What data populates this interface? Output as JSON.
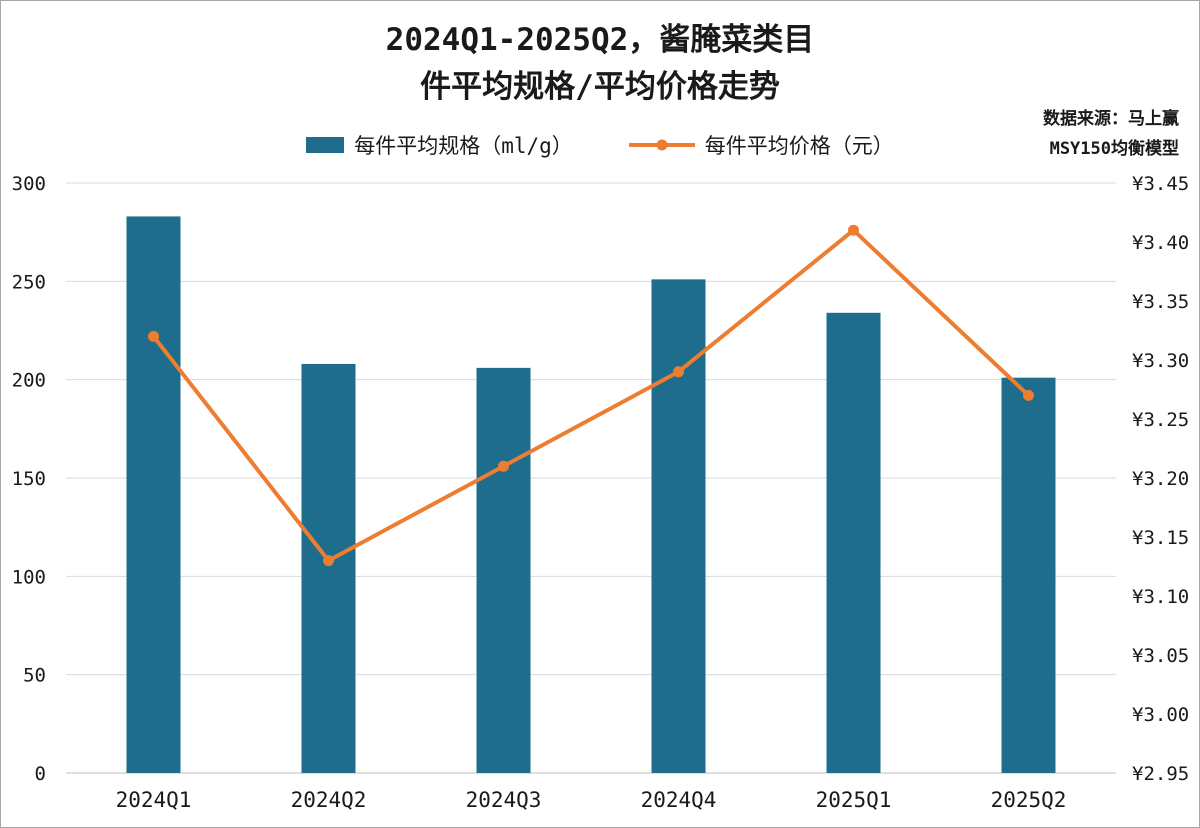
{
  "title": {
    "line1": "2024Q1-2025Q2，酱腌菜类目",
    "line2": "件平均规格/平均价格走势"
  },
  "source": {
    "line1": "数据来源：马上赢",
    "line2": "MSY150均衡模型"
  },
  "legend": {
    "bar_label": "每件平均规格（ml/g）",
    "line_label": "每件平均价格（元）"
  },
  "colors": {
    "bar": "#1E6D8C",
    "line": "#ED7D31",
    "grid": "#D9D9D9",
    "axis_line": "#BFBFBF",
    "text": "#1A1A1A"
  },
  "chart_data": {
    "type": "combo-bar-line",
    "title": "2024Q1-2025Q2，酱腌菜类目 件平均规格/平均价格走势",
    "categories": [
      "2024Q1",
      "2024Q2",
      "2024Q3",
      "2024Q4",
      "2025Q1",
      "2025Q2"
    ],
    "series": [
      {
        "name": "每件平均规格（ml/g）",
        "type": "bar",
        "axis": "left",
        "values": [
          283,
          208,
          206,
          251,
          234,
          201
        ]
      },
      {
        "name": "每件平均价格（元）",
        "type": "line",
        "axis": "right",
        "values": [
          3.32,
          3.13,
          3.21,
          3.29,
          3.41,
          3.27
        ]
      }
    ],
    "left_axis": {
      "min": 0,
      "max": 300,
      "ticks": [
        "0",
        "50",
        "100",
        "150",
        "200",
        "250",
        "300"
      ]
    },
    "right_axis": {
      "min": 2.95,
      "max": 3.45,
      "ticks": [
        "¥2.95",
        "¥3.00",
        "¥3.05",
        "¥3.10",
        "¥3.15",
        "¥3.20",
        "¥3.25",
        "¥3.30",
        "¥3.35",
        "¥3.40",
        "¥3.45"
      ]
    },
    "grid": "horizontal",
    "legend_position": "top"
  }
}
